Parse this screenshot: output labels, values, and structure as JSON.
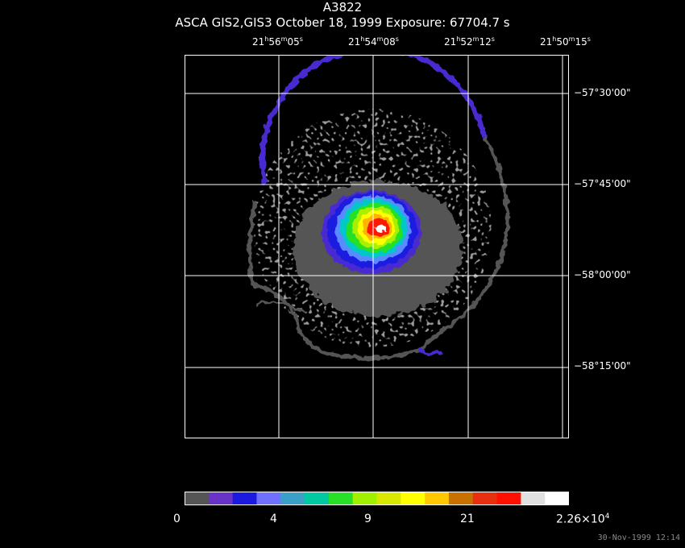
{
  "header": {
    "object": "A3822",
    "subtitle": "ASCA GIS2,GIS3 October 18, 1999 Exposure: 67704.7 s"
  },
  "ra_labels": [
    {
      "h": "21",
      "hs": "h",
      "m": "56",
      "ms": "m",
      "s": "05",
      "ss": "s"
    },
    {
      "h": "21",
      "hs": "h",
      "m": "54",
      "ms": "m",
      "s": "08",
      "ss": "s"
    },
    {
      "h": "21",
      "hs": "h",
      "m": "52",
      "ms": "m",
      "s": "12",
      "ss": "s"
    },
    {
      "h": "21",
      "hs": "h",
      "m": "50",
      "ms": "m",
      "s": "15",
      "ss": "s"
    }
  ],
  "dec_labels": [
    "−57°30'00\"",
    "−57°45'00\"",
    "−58°00'00\"",
    "−58°15'00\""
  ],
  "colorbar": {
    "colors": [
      "#555555",
      "#6a33c8",
      "#1a1ae0",
      "#7070ff",
      "#3aa0c8",
      "#00c8a0",
      "#28e028",
      "#a0f000",
      "#d8e800",
      "#ffff00",
      "#ffc800",
      "#c87000",
      "#e83010",
      "#ff1000",
      "#e0e0e0",
      "#ffffff"
    ],
    "labels": [
      "0",
      "4",
      "9",
      "21",
      "2.26×10"
    ],
    "exp": "4"
  },
  "timestamp": "30-Nov-1999 12:14",
  "image": {
    "contour_colors": [
      "#555555",
      "#4a2ad0",
      "#1a1ae0",
      "#5a8aff",
      "#00c8c8",
      "#28e028",
      "#a8f000",
      "#ffff00",
      "#ffb400",
      "#ff1800",
      "#ffffff"
    ]
  }
}
